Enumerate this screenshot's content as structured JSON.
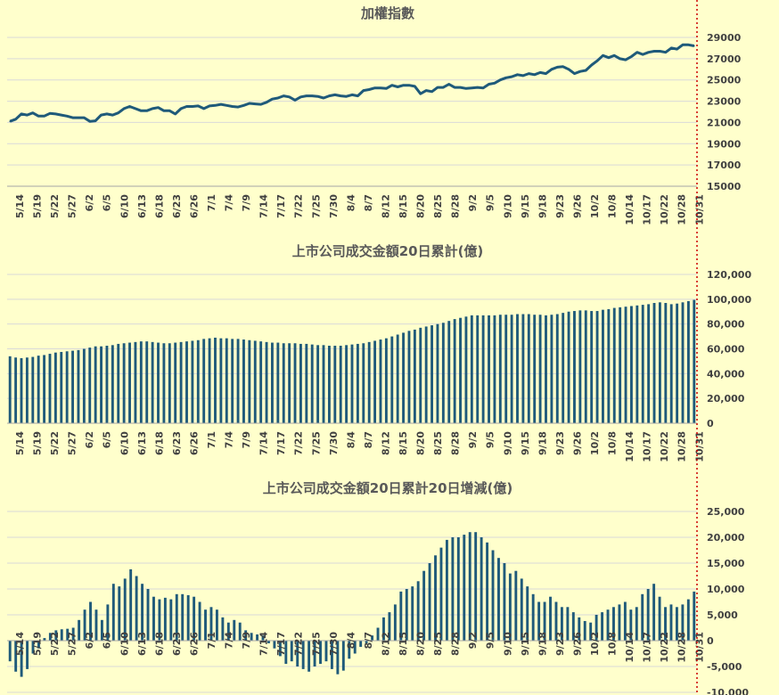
{
  "chart_data": [
    {
      "type": "line",
      "title": "加權指數",
      "color": "#1f5a7a",
      "ylim": [
        15000,
        29000
      ],
      "yticks": [
        15000,
        17000,
        19000,
        21000,
        23000,
        25000,
        27000,
        29000
      ],
      "ytick_labels": [
        "15000",
        "17000",
        "19000",
        "21000",
        "23000",
        "25000",
        "27000",
        "29000"
      ],
      "x_ticks": [
        "5/14",
        "5/19",
        "5/22",
        "5/27",
        "6/2",
        "6/5",
        "6/10",
        "6/13",
        "6/18",
        "6/23",
        "6/26",
        "7/1",
        "7/4",
        "7/9",
        "7/14",
        "7/17",
        "7/22",
        "7/25",
        "7/30",
        "8/4",
        "8/7",
        "8/12",
        "8/15",
        "8/20",
        "8/25",
        "8/28",
        "9/2",
        "9/5",
        "9/10",
        "9/15",
        "9/18",
        "9/23",
        "9/26",
        "10/2",
        "10/8",
        "10/14",
        "10/17",
        "10/22",
        "10/28",
        "10/31"
      ],
      "values": [
        21100,
        21300,
        21800,
        21700,
        21900,
        21600,
        21600,
        21850,
        21800,
        21700,
        21600,
        21450,
        21450,
        21450,
        21100,
        21150,
        21700,
        21800,
        21700,
        21900,
        22300,
        22500,
        22300,
        22100,
        22100,
        22300,
        22400,
        22100,
        22100,
        21800,
        22300,
        22500,
        22500,
        22550,
        22300,
        22550,
        22600,
        22700,
        22600,
        22500,
        22450,
        22600,
        22800,
        22750,
        22700,
        22900,
        23200,
        23300,
        23500,
        23400,
        23100,
        23400,
        23500,
        23500,
        23450,
        23300,
        23500,
        23600,
        23500,
        23450,
        23600,
        23500,
        24000,
        24100,
        24250,
        24250,
        24200,
        24500,
        24350,
        24500,
        24500,
        24400,
        23700,
        24000,
        23900,
        24300,
        24300,
        24600,
        24300,
        24300,
        24200,
        24250,
        24300,
        24250,
        24600,
        24700,
        25000,
        25200,
        25300,
        25500,
        25400,
        25600,
        25500,
        25700,
        25600,
        26000,
        26200,
        26250,
        26000,
        25600,
        25800,
        25900,
        26400,
        26800,
        27300,
        27100,
        27300,
        27000,
        26900,
        27200,
        27600,
        27400,
        27600,
        27700,
        27700,
        27600,
        28000,
        27900,
        28300,
        28300,
        28200
      ]
    },
    {
      "type": "bar",
      "title": "上市公司成交金額20日累計(億)",
      "color": "#1f5a7a",
      "ylim": [
        0,
        120000
      ],
      "yticks": [
        0,
        20000,
        40000,
        60000,
        80000,
        100000,
        120000
      ],
      "ytick_labels": [
        "0",
        "20,000",
        "40,000",
        "60,000",
        "80,000",
        "100,000",
        "120,000"
      ],
      "x_ticks": [
        "5/14",
        "5/19",
        "5/22",
        "5/27",
        "6/2",
        "6/5",
        "6/10",
        "6/13",
        "6/18",
        "6/23",
        "6/26",
        "7/1",
        "7/4",
        "7/9",
        "7/14",
        "7/17",
        "7/22",
        "7/25",
        "7/30",
        "8/4",
        "8/7",
        "8/12",
        "8/15",
        "8/20",
        "8/25",
        "8/28",
        "9/2",
        "9/5",
        "9/10",
        "9/15",
        "9/18",
        "9/23",
        "9/26",
        "10/2",
        "10/8",
        "10/14",
        "10/17",
        "10/22",
        "10/28",
        "10/31"
      ],
      "values": [
        54000,
        53000,
        52500,
        53000,
        53500,
        54500,
        55000,
        56000,
        57000,
        57500,
        58000,
        58500,
        59000,
        60000,
        61000,
        62000,
        62000,
        62500,
        63000,
        64000,
        64500,
        65000,
        65500,
        66000,
        66000,
        65500,
        65000,
        64500,
        64500,
        65000,
        65500,
        66000,
        66500,
        67000,
        68000,
        68500,
        69000,
        68500,
        68500,
        68000,
        68000,
        67500,
        67000,
        66500,
        66000,
        65500,
        65000,
        65000,
        64500,
        64500,
        64500,
        64000,
        64000,
        63500,
        63000,
        63000,
        62500,
        62500,
        62500,
        63000,
        63500,
        64000,
        64500,
        65500,
        66500,
        67500,
        68500,
        70000,
        71500,
        73000,
        74500,
        75500,
        77000,
        78000,
        79000,
        80000,
        81000,
        82500,
        84000,
        85000,
        86000,
        87000,
        87000,
        87000,
        87000,
        87000,
        87500,
        87500,
        87500,
        88000,
        88000,
        88000,
        87500,
        87500,
        87000,
        87500,
        88000,
        89000,
        90000,
        90500,
        91000,
        91000,
        90500,
        90500,
        91500,
        92000,
        93000,
        93500,
        94000,
        94500,
        95000,
        95500,
        96000,
        97000,
        97500,
        97000,
        96000,
        96500,
        97500,
        98500,
        99500
      ]
    },
    {
      "type": "bar",
      "title": "上市公司成交金額20日累計20日增減(億)",
      "color": "#1f5a7a",
      "ylim": [
        -10000,
        25000
      ],
      "yticks": [
        -10000,
        -5000,
        0,
        5000,
        10000,
        15000,
        20000,
        25000
      ],
      "ytick_labels": [
        "-10,000",
        "-5,000",
        "0",
        "5,000",
        "10,000",
        "15,000",
        "20,000",
        "25,000"
      ],
      "x_ticks": [
        "5/14",
        "5/19",
        "5/22",
        "5/27",
        "6/2",
        "6/5",
        "6/10",
        "6/13",
        "6/18",
        "6/23",
        "6/26",
        "7/1",
        "7/4",
        "7/9",
        "7/14",
        "7/17",
        "7/22",
        "7/25",
        "7/30",
        "8/4",
        "8/7",
        "8/12",
        "8/15",
        "8/20",
        "8/25",
        "8/28",
        "9/2",
        "9/5",
        "9/10",
        "9/15",
        "9/18",
        "9/23",
        "9/26",
        "10/2",
        "10/8",
        "10/14",
        "10/17",
        "10/22",
        "10/28",
        "10/31"
      ],
      "values": [
        -4000,
        -6000,
        -7000,
        -5500,
        -2500,
        -1500,
        500,
        1500,
        2000,
        2200,
        2300,
        2500,
        4000,
        6000,
        7500,
        6000,
        4000,
        7000,
        11000,
        10500,
        12000,
        13800,
        12500,
        11000,
        10000,
        8500,
        8000,
        8300,
        8000,
        9000,
        9000,
        8800,
        8500,
        7500,
        6000,
        6500,
        6000,
        4500,
        3500,
        4000,
        3500,
        2000,
        1500,
        1200,
        1000,
        -500,
        -1500,
        -3000,
        -4500,
        -4000,
        -5000,
        -5500,
        -6000,
        -5000,
        -4500,
        -4000,
        -5500,
        -6500,
        -5800,
        -3500,
        -2500,
        -1200,
        -500,
        1000,
        2500,
        4500,
        5500,
        7000,
        9500,
        10000,
        10500,
        11500,
        13500,
        15000,
        16500,
        18000,
        19500,
        20000,
        20000,
        20500,
        21000,
        21000,
        20000,
        19000,
        17500,
        16000,
        15000,
        13000,
        13500,
        12000,
        10500,
        9000,
        7500,
        7500,
        8500,
        7500,
        6500,
        6500,
        5500,
        4500,
        3800,
        3500,
        5000,
        5500,
        6000,
        6500,
        7000,
        7500,
        6000,
        6500,
        9000,
        10000,
        11000,
        8500,
        6500,
        7000,
        6500,
        7000,
        8000,
        9500
      ]
    }
  ]
}
